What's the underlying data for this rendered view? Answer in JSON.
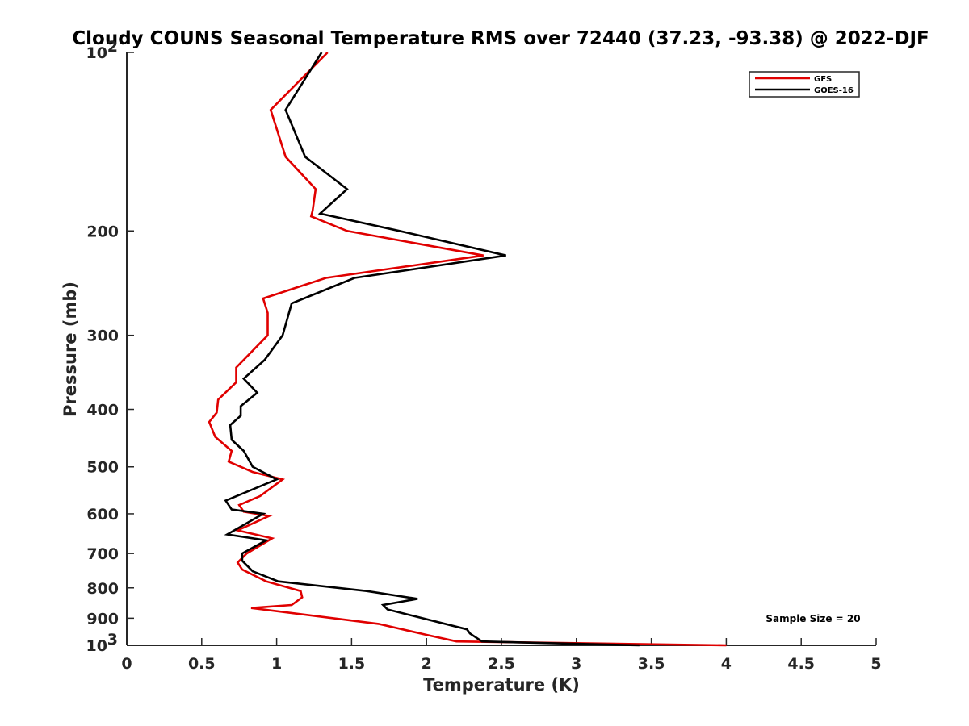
{
  "chart_data": {
    "type": "line",
    "title": "Cloudy COUNS Seasonal Temperature RMS over 72440 (37.23, -93.38) @ 2022-DJF",
    "xlabel": "Temperature (K)",
    "ylabel": "Pressure (mb)",
    "xlim": [
      0,
      5
    ],
    "ylim": [
      100,
      1000
    ],
    "yscale": "log",
    "y_reversed": true,
    "xticks": [
      "0",
      "0.5",
      "1",
      "1.5",
      "2",
      "2.5",
      "3",
      "3.5",
      "4",
      "4.5",
      "5"
    ],
    "yticks": [
      {
        "value": 100,
        "base": "10",
        "exp": "2"
      },
      {
        "value": 200,
        "label": "200"
      },
      {
        "value": 300,
        "label": "300"
      },
      {
        "value": 400,
        "label": "400"
      },
      {
        "value": 500,
        "label": "500"
      },
      {
        "value": 600,
        "label": "600"
      },
      {
        "value": 700,
        "label": "700"
      },
      {
        "value": 800,
        "label": "800"
      },
      {
        "value": 900,
        "label": "900"
      },
      {
        "value": 1000,
        "base": "10",
        "exp": "3"
      }
    ],
    "legend_position": "top-right",
    "annotation": "Sample Size = 20",
    "series": [
      {
        "name": "GFS",
        "color": "#e00000",
        "points": [
          [
            1.34,
            100
          ],
          [
            0.96,
            125
          ],
          [
            1.06,
            150
          ],
          [
            1.26,
            170
          ],
          [
            1.24,
            185
          ],
          [
            1.23,
            189
          ],
          [
            1.47,
            200
          ],
          [
            2.38,
            220
          ],
          [
            1.33,
            240
          ],
          [
            0.91,
            260
          ],
          [
            0.94,
            275
          ],
          [
            0.94,
            300
          ],
          [
            0.73,
            340
          ],
          [
            0.73,
            360
          ],
          [
            0.61,
            385
          ],
          [
            0.6,
            405
          ],
          [
            0.55,
            420
          ],
          [
            0.59,
            445
          ],
          [
            0.7,
            470
          ],
          [
            0.68,
            490
          ],
          [
            0.84,
            510
          ],
          [
            1.04,
            525
          ],
          [
            0.89,
            560
          ],
          [
            0.75,
            580
          ],
          [
            0.78,
            595
          ],
          [
            0.95,
            605
          ],
          [
            0.74,
            640
          ],
          [
            0.97,
            660
          ],
          [
            0.8,
            700
          ],
          [
            0.74,
            725
          ],
          [
            0.77,
            745
          ],
          [
            0.93,
            780
          ],
          [
            1.16,
            810
          ],
          [
            1.17,
            830
          ],
          [
            1.1,
            855
          ],
          [
            0.83,
            865
          ],
          [
            1.68,
            920
          ],
          [
            2.0,
            960
          ],
          [
            2.2,
            985
          ],
          [
            4.0,
            1000
          ]
        ]
      },
      {
        "name": "GOES-16",
        "color": "#000000",
        "points": [
          [
            1.3,
            100
          ],
          [
            1.06,
            125
          ],
          [
            1.19,
            150
          ],
          [
            1.47,
            170
          ],
          [
            1.29,
            187
          ],
          [
            1.82,
            200
          ],
          [
            2.53,
            220
          ],
          [
            1.52,
            240
          ],
          [
            1.1,
            265
          ],
          [
            1.04,
            300
          ],
          [
            0.92,
            330
          ],
          [
            0.78,
            355
          ],
          [
            0.87,
            375
          ],
          [
            0.76,
            395
          ],
          [
            0.76,
            410
          ],
          [
            0.69,
            425
          ],
          [
            0.7,
            450
          ],
          [
            0.78,
            470
          ],
          [
            0.84,
            500
          ],
          [
            1.0,
            525
          ],
          [
            0.66,
            570
          ],
          [
            0.7,
            590
          ],
          [
            0.91,
            600
          ],
          [
            0.67,
            650
          ],
          [
            0.93,
            665
          ],
          [
            0.77,
            700
          ],
          [
            0.77,
            720
          ],
          [
            0.84,
            750
          ],
          [
            1.01,
            780
          ],
          [
            1.6,
            810
          ],
          [
            1.94,
            835
          ],
          [
            1.71,
            855
          ],
          [
            1.74,
            870
          ],
          [
            2.27,
            940
          ],
          [
            2.29,
            955
          ],
          [
            2.37,
            985
          ],
          [
            3.42,
            1000
          ]
        ]
      }
    ]
  }
}
